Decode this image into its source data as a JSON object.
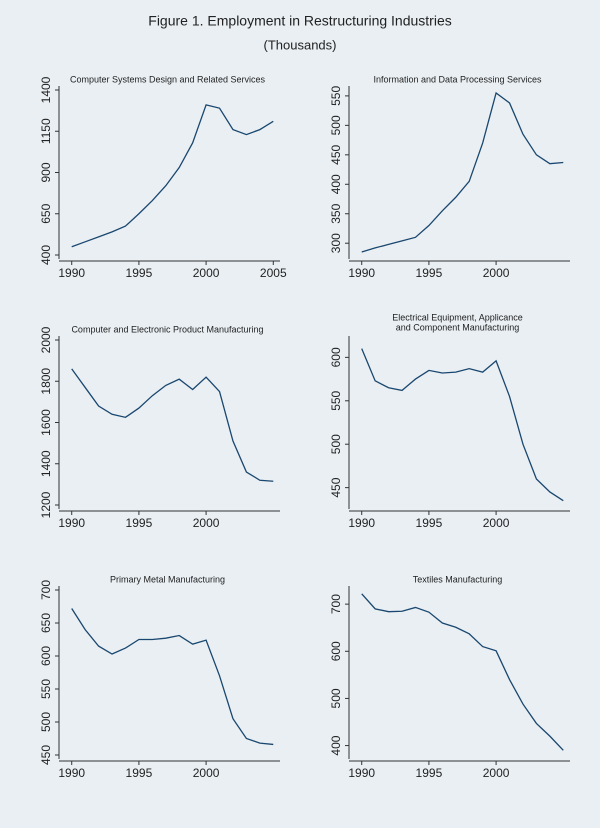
{
  "title": "Figure 1.  Employment in Restructuring Industries",
  "subtitle": "(Thousands)",
  "chart_data": [
    {
      "type": "line",
      "title": "Computer Systems Design and Related Services",
      "color": "#1a476f",
      "x": [
        1990,
        1991,
        1992,
        1993,
        1994,
        1995,
        1996,
        1997,
        1998,
        1999,
        2000,
        2001,
        2002,
        2003,
        2004,
        2005
      ],
      "values": [
        450,
        480,
        510,
        540,
        575,
        650,
        730,
        820,
        930,
        1080,
        1310,
        1290,
        1160,
        1130,
        1160,
        1210
      ],
      "xlim": [
        1989.5,
        2005.5
      ],
      "xticks": [
        1990,
        1995,
        2000,
        2005
      ],
      "ylim": [
        400,
        1400
      ],
      "yticks": [
        400,
        650,
        900,
        1150,
        1400
      ]
    },
    {
      "type": "line",
      "title": "Information and Data Processing Services",
      "color": "#1a476f",
      "x": [
        1990,
        1991,
        1992,
        1993,
        1994,
        1995,
        1996,
        1997,
        1998,
        1999,
        2000,
        2001,
        2002,
        2003,
        2004,
        2005
      ],
      "values": [
        285,
        292,
        298,
        304,
        310,
        330,
        355,
        378,
        405,
        470,
        555,
        538,
        485,
        450,
        435,
        437
      ],
      "xlim": [
        1989.5,
        2005.5
      ],
      "xticks": [
        1990,
        1995,
        2000
      ],
      "ylim": [
        280,
        560
      ],
      "yticks": [
        300,
        350,
        400,
        450,
        500,
        550
      ]
    },
    {
      "type": "line",
      "title": "Computer and Electronic Product Manufacturing",
      "color": "#1a476f",
      "x": [
        1990,
        1991,
        1992,
        1993,
        1994,
        1995,
        1996,
        1997,
        1998,
        1999,
        2000,
        2001,
        2002,
        2003,
        2004,
        2005
      ],
      "values": [
        1860,
        1770,
        1680,
        1640,
        1625,
        1670,
        1730,
        1780,
        1810,
        1760,
        1820,
        1750,
        1510,
        1360,
        1320,
        1315
      ],
      "xlim": [
        1989.5,
        2005.5
      ],
      "xticks": [
        1990,
        1995,
        2000
      ],
      "ylim": [
        1200,
        2000
      ],
      "yticks": [
        1200,
        1400,
        1600,
        1800,
        2000
      ]
    },
    {
      "type": "line",
      "title": [
        "Electrical Equipment, Applicance",
        "and Component Manufacturing"
      ],
      "color": "#1a476f",
      "x": [
        1990,
        1991,
        1992,
        1993,
        1994,
        1995,
        1996,
        1997,
        1998,
        1999,
        2000,
        2001,
        2002,
        2003,
        2004,
        2005
      ],
      "values": [
        610,
        573,
        565,
        562,
        575,
        585,
        582,
        583,
        587,
        583,
        596,
        555,
        500,
        460,
        445,
        435
      ],
      "xlim": [
        1989.5,
        2005.5
      ],
      "xticks": [
        1990,
        1995,
        2000
      ],
      "ylim": [
        430,
        620
      ],
      "yticks": [
        450,
        500,
        550,
        600
      ]
    },
    {
      "type": "line",
      "title": "Primary Metal Manufacturing",
      "color": "#1a476f",
      "x": [
        1990,
        1991,
        1992,
        1993,
        1994,
        1995,
        1996,
        1997,
        1998,
        1999,
        2000,
        2001,
        2002,
        2003,
        2004,
        2005
      ],
      "values": [
        672,
        640,
        615,
        603,
        612,
        625,
        625,
        627,
        631,
        618,
        624,
        570,
        505,
        475,
        468,
        466
      ],
      "xlim": [
        1989.5,
        2005.5
      ],
      "xticks": [
        1990,
        1995,
        2000
      ],
      "ylim": [
        450,
        700
      ],
      "yticks": [
        450,
        500,
        550,
        600,
        650,
        700
      ]
    },
    {
      "type": "line",
      "title": "Textiles Manufacturing",
      "color": "#1a476f",
      "x": [
        1990,
        1991,
        1992,
        1993,
        1994,
        1995,
        1996,
        1997,
        1998,
        1999,
        2000,
        2001,
        2002,
        2003,
        2004,
        2005
      ],
      "values": [
        722,
        690,
        684,
        685,
        693,
        683,
        660,
        651,
        637,
        610,
        601,
        540,
        488,
        447,
        420,
        390
      ],
      "xlim": [
        1989.5,
        2005.5
      ],
      "xticks": [
        1990,
        1995,
        2000
      ],
      "ylim": [
        380,
        730
      ],
      "yticks": [
        400,
        500,
        600,
        700
      ]
    }
  ]
}
